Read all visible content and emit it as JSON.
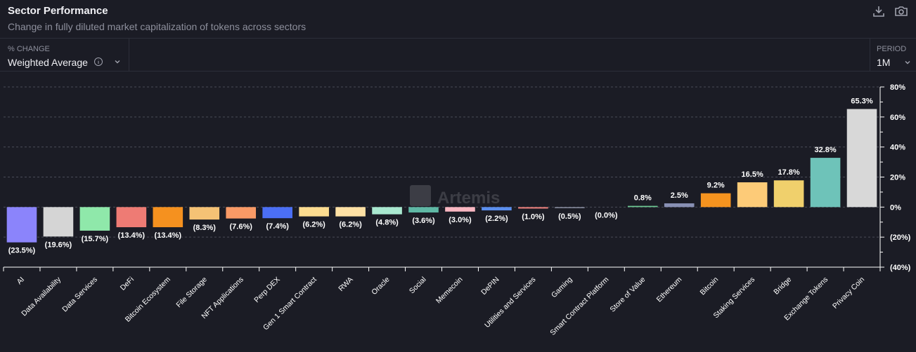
{
  "header": {
    "title": "Sector Performance",
    "subtitle": "Change in fully diluted market capitalization of tokens across sectors"
  },
  "controls": {
    "metric_label": "% CHANGE",
    "metric_value": "Weighted Average",
    "period_label": "PERIOD",
    "period_value": "1M"
  },
  "watermark": "Artemis",
  "colors": {
    "background": "#1b1c25"
  },
  "chart_data": {
    "type": "bar",
    "title": "",
    "ylim": [
      -40,
      80
    ],
    "yticks": [
      "80%",
      "60%",
      "40%",
      "20%",
      "0%",
      "(20%)",
      "(40%)"
    ],
    "ytick_values": [
      80,
      60,
      40,
      20,
      0,
      -20,
      -40
    ],
    "grid": true,
    "categories": [
      "AI",
      "Data Availability",
      "Data Services",
      "DeFi",
      "Bitcoin Ecosystem",
      "File Storage",
      "NFT Applications",
      "Perp DEX",
      "Gen 1 Smart Contract",
      "RWA",
      "Oracle",
      "Social",
      "Memecoin",
      "DePIN",
      "Utilities and Services",
      "Gaming",
      "Smart Contract Platform",
      "Store of Value",
      "Ethereum",
      "Bitcoin",
      "Staking Services",
      "Bridge",
      "Exchange Tokens",
      "Privacy Coin"
    ],
    "values": [
      -23.5,
      -19.6,
      -15.7,
      -13.4,
      -13.4,
      -8.3,
      -7.6,
      -7.4,
      -6.2,
      -6.2,
      -4.8,
      -3.6,
      -3.0,
      -2.2,
      -1.0,
      -0.5,
      0.0,
      0.8,
      2.5,
      9.2,
      16.5,
      17.8,
      32.8,
      65.3
    ],
    "labels": [
      "(23.5%)",
      "(19.6%)",
      "(15.7%)",
      "(13.4%)",
      "(13.4%)",
      "(8.3%)",
      "(7.6%)",
      "(7.4%)",
      "(6.2%)",
      "(6.2%)",
      "(4.8%)",
      "(3.6%)",
      "(3.0%)",
      "(2.2%)",
      "(1.0%)",
      "(0.5%)",
      "(0.0%)",
      "0.8%",
      "2.5%",
      "9.2%",
      "16.5%",
      "17.8%",
      "32.8%",
      "65.3%"
    ],
    "bar_colors": [
      "#8b84fb",
      "#d5d5d5",
      "#8fe8aa",
      "#ee7b74",
      "#f5911f",
      "#f5c275",
      "#f99a66",
      "#4b6ff5",
      "#fcdc90",
      "#fde0a4",
      "#a9e8d0",
      "#5fb8a5",
      "#f9b7c2",
      "#5b8fef",
      "#e57d7a",
      "#8a8ea0",
      "#8a8ea0",
      "#6fca94",
      "#8890b4",
      "#f5931f",
      "#fdcb78",
      "#f0d06c",
      "#6ec3b9",
      "#d8d8d8"
    ]
  }
}
